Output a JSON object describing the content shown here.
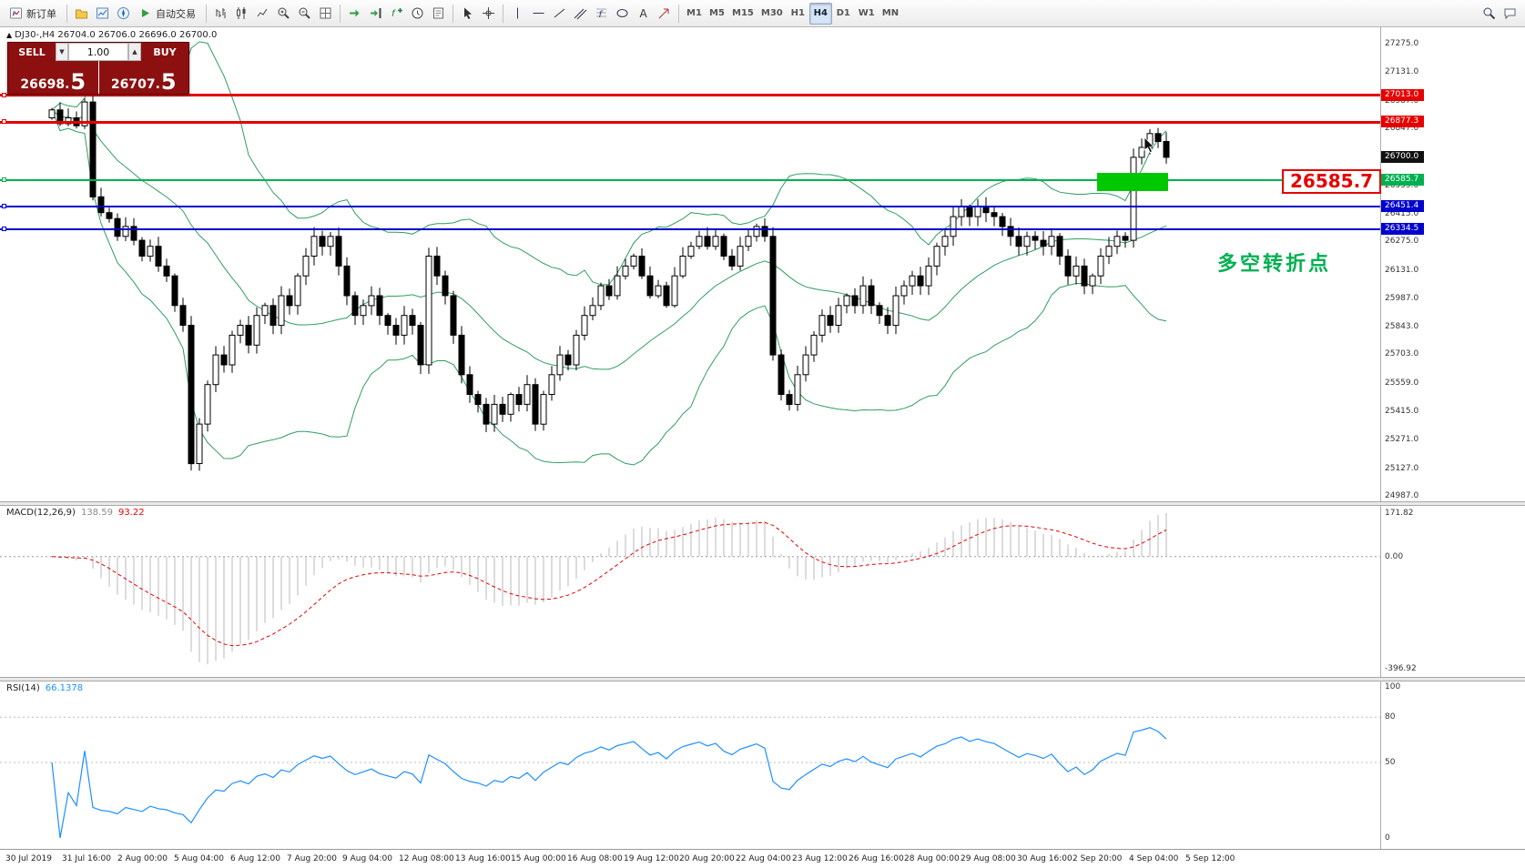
{
  "toolbar": {
    "groups": [
      {
        "items": [
          {
            "icon": "new-order-icon",
            "label": "新订单",
            "name": "new-order-button"
          }
        ]
      },
      {
        "items": [
          {
            "icon": "chart-profiles-icon",
            "name": "chart-profiles-button"
          },
          {
            "icon": "market-watch-icon",
            "name": "market-watch-button"
          },
          {
            "icon": "navigator-icon",
            "name": "navigator-button"
          },
          {
            "icon": "auto-trading-icon",
            "label": "自动交易",
            "name": "auto-trading-button"
          }
        ]
      },
      {
        "items": [
          {
            "icon": "bar-chart-icon",
            "name": "bar-chart-button"
          },
          {
            "icon": "candlestick-icon",
            "name": "candlestick-button"
          },
          {
            "icon": "line-chart-icon",
            "name": "line-chart-button"
          },
          {
            "icon": "zoom-in-icon",
            "name": "zoom-in-button"
          },
          {
            "icon": "zoom-out-icon",
            "name": "zoom-out-button"
          },
          {
            "icon": "tile-windows-icon",
            "name": "tile-windows-button"
          }
        ]
      },
      {
        "items": [
          {
            "icon": "auto-scroll-icon",
            "name": "auto-scroll-button"
          },
          {
            "icon": "chart-shift-icon",
            "name": "chart-shift-button"
          },
          {
            "icon": "indicators-icon",
            "name": "indicators-button"
          },
          {
            "icon": "period-icon",
            "name": "periods-button"
          },
          {
            "icon": "template-icon",
            "name": "templates-button"
          }
        ]
      },
      {
        "items": [
          {
            "icon": "cursor-icon",
            "name": "cursor-button"
          },
          {
            "icon": "crosshair-icon",
            "name": "crosshair-button"
          }
        ]
      },
      {
        "items": [
          {
            "icon": "vertical-line-icon",
            "name": "vertical-line-button"
          },
          {
            "icon": "horizontal-line-icon",
            "name": "horizontal-line-button"
          },
          {
            "icon": "trendline-icon",
            "name": "trendline-button"
          },
          {
            "icon": "channel-icon",
            "name": "equidistant-channel-button"
          },
          {
            "icon": "fibonacci-icon",
            "name": "fibonacci-button"
          },
          {
            "icon": "shapes-icon",
            "name": "shapes-button"
          },
          {
            "icon": "text-icon",
            "name": "text-label-button"
          },
          {
            "icon": "arrow-icon",
            "name": "arrows-button"
          }
        ]
      }
    ],
    "timeframes": [
      "M1",
      "M5",
      "M15",
      "M30",
      "H1",
      "H4",
      "D1",
      "W1",
      "MN"
    ],
    "active_timeframe": "H4",
    "right_icons": [
      {
        "icon": "search-icon",
        "name": "search-button"
      },
      {
        "icon": "chat-icon",
        "name": "community-button"
      }
    ]
  },
  "chart": {
    "collapse_icon": "▲",
    "info_line": "DJ30-,H4  26704.0 26706.0 26696.0 26700.0",
    "trade_panel": {
      "sell_label": "SELL",
      "buy_label": "BUY",
      "lot": "1.00",
      "spin_down": "▼",
      "spin_up": "▲",
      "sell_price_main": "26698.",
      "sell_price_big": "5",
      "buy_price_main": "26707.",
      "buy_price_big": "5"
    },
    "levels": [
      {
        "label": "27013.0",
        "price": 27013.0,
        "color": "#e60000",
        "thickness": 3
      },
      {
        "label": "26877.3",
        "price": 26877.3,
        "color": "#e60000",
        "thickness": 3
      },
      {
        "label": "26585.7",
        "price": 26585.7,
        "color": "#00b050",
        "thickness": 2
      },
      {
        "label": "26451.4",
        "price": 26451.4,
        "color": "#0000cc",
        "thickness": 2
      },
      {
        "label": "26334.5",
        "price": 26334.5,
        "color": "#0000cc",
        "thickness": 2
      }
    ],
    "current_price": {
      "label": "26700.0",
      "price": 26700.0,
      "color": "#111111"
    },
    "zone": {
      "price_top": 26620,
      "price_bottom": 26530,
      "x_start": 1205,
      "x_end": 1283,
      "color": "#00c800"
    },
    "callout": {
      "text": "26585.7",
      "color": "#e60000"
    },
    "annotation": {
      "text": "多空转折点",
      "color": "#00b050"
    },
    "y_axis": [
      27275.0,
      27131.0,
      26987.0,
      26847.0,
      26703.0,
      26559.0,
      26415.0,
      26275.0,
      26131.0,
      25987.0,
      25843.0,
      25703.0,
      25559.0,
      25415.0,
      25271.0,
      25127.0,
      24987.0
    ],
    "x_axis": [
      "30 Jul 2019",
      "31 Jul 16:00",
      "2 Aug 00:00",
      "5 Aug 04:00",
      "6 Aug 12:00",
      "7 Aug 20:00",
      "9 Aug 04:00",
      "12 Aug 08:00",
      "13 Aug 16:00",
      "15 Aug 00:00",
      "16 Aug 08:00",
      "19 Aug 12:00",
      "20 Aug 20:00",
      "22 Aug 04:00",
      "23 Aug 12:00",
      "26 Aug 16:00",
      "28 Aug 00:00",
      "29 Aug 08:00",
      "30 Aug 16:00",
      "2 Sep 20:00",
      "4 Sep 04:00",
      "5 Sep 12:00"
    ]
  },
  "macd": {
    "name": "MACD(12,26,9)",
    "main_value": "138.59",
    "signal_value": "93.22",
    "axis_max": "171.82",
    "axis_zero": "0.00",
    "axis_min": "-396.92",
    "histogram_color": "#b8b8b8",
    "signal_color": "#e60000"
  },
  "rsi": {
    "name": "RSI(14)",
    "value": "66.1378",
    "levels": [
      "100",
      "80",
      "50",
      "0"
    ],
    "line_color": "#1e90ff"
  },
  "chart_data": {
    "type": "candlestick",
    "symbol": "DJ30-",
    "timeframe": "H4",
    "ylim": [
      24987,
      27275
    ],
    "first_open": 26900,
    "bollinger": {
      "period": 20,
      "deviation": 2,
      "color": "#2f9e5f"
    },
    "closes": [
      26940,
      26870,
      26900,
      26860,
      26980,
      26500,
      26420,
      26390,
      26300,
      26350,
      26280,
      26200,
      26250,
      26150,
      26100,
      25950,
      25850,
      25150,
      25350,
      25550,
      25700,
      25650,
      25800,
      25850,
      25750,
      25900,
      25950,
      25850,
      26000,
      25950,
      26100,
      26200,
      26300,
      26250,
      26300,
      26150,
      26000,
      25900,
      25950,
      26000,
      25900,
      25850,
      25800,
      25900,
      25850,
      25650,
      26200,
      26100,
      26000,
      25800,
      25600,
      25500,
      25450,
      25350,
      25450,
      25400,
      25500,
      25450,
      25550,
      25350,
      25500,
      25600,
      25700,
      25650,
      25800,
      25900,
      25950,
      26050,
      26000,
      26100,
      26150,
      26200,
      26100,
      26000,
      26050,
      25950,
      26100,
      26200,
      26250,
      26300,
      26250,
      26300,
      26200,
      26150,
      26250,
      26300,
      26350,
      26300,
      25700,
      25500,
      25450,
      25600,
      25700,
      25800,
      25900,
      25850,
      25950,
      26000,
      25950,
      26050,
      25950,
      25900,
      25850,
      26000,
      26050,
      26100,
      26050,
      26150,
      26250,
      26300,
      26400,
      26450,
      26400,
      26450,
      26420,
      26400,
      26350,
      26300,
      26250,
      26300,
      26280,
      26250,
      26300,
      26200,
      26100,
      26150,
      26050,
      26100,
      26200,
      26250,
      26300,
      26280,
      26700,
      26750,
      26820,
      26780,
      26700
    ]
  }
}
